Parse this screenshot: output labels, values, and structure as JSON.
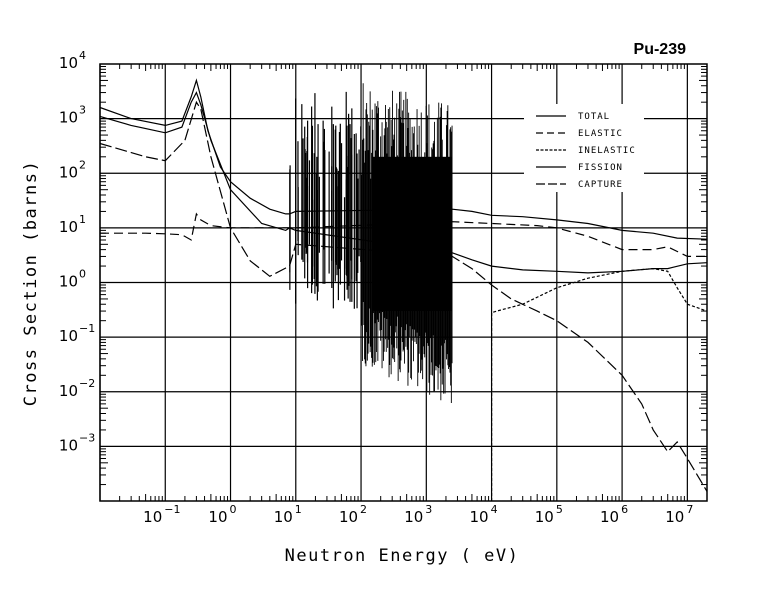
{
  "chart_data": {
    "type": "line",
    "title": "Pu-239",
    "xlabel": "Neutron Energy ( eV)",
    "ylabel": "Cross Section (barns)",
    "xscale": "log",
    "yscale": "log",
    "xlim": [
      0.01,
      20000000
    ],
    "ylim": [
      0.0001,
      10000
    ],
    "grid": true,
    "legend_position": "top-right",
    "x_ticks": [
      {
        "base": "10",
        "exp": "-1",
        "value": 0.1
      },
      {
        "base": "10",
        "exp": "0",
        "value": 1
      },
      {
        "base": "10",
        "exp": "1",
        "value": 10
      },
      {
        "base": "10",
        "exp": "2",
        "value": 100
      },
      {
        "base": "10",
        "exp": "3",
        "value": 1000
      },
      {
        "base": "10",
        "exp": "4",
        "value": 10000
      },
      {
        "base": "10",
        "exp": "5",
        "value": 100000
      },
      {
        "base": "10",
        "exp": "6",
        "value": 1000000
      },
      {
        "base": "10",
        "exp": "7",
        "value": 10000000
      }
    ],
    "y_ticks": [
      {
        "base": "10",
        "exp": "4",
        "value": 10000
      },
      {
        "base": "10",
        "exp": "3",
        "value": 1000
      },
      {
        "base": "10",
        "exp": "2",
        "value": 100
      },
      {
        "base": "10",
        "exp": "1",
        "value": 10
      },
      {
        "base": "10",
        "exp": "0",
        "value": 1
      },
      {
        "base": "10",
        "exp": "-1",
        "value": 0.1
      },
      {
        "base": "10",
        "exp": "-2",
        "value": 0.01
      },
      {
        "base": "10",
        "exp": "-3",
        "value": 0.001
      }
    ],
    "series": [
      {
        "name": "TOTAL",
        "style": "solid",
        "x": [
          0.01,
          0.03,
          0.1,
          0.18,
          0.25,
          0.3,
          0.35,
          0.45,
          0.7,
          1.0,
          2.0,
          4.0,
          7.0,
          8.0,
          10.0,
          2500,
          5000,
          10000,
          30000,
          100000,
          300000,
          1000000,
          3000000,
          7000000,
          20000000
        ],
        "y": [
          1600,
          1000,
          750,
          900,
          2500,
          5000,
          2500,
          600,
          130,
          70,
          35,
          22,
          18,
          18,
          20,
          22,
          20,
          17,
          16,
          14,
          12,
          9,
          8,
          6.5,
          6.2
        ]
      },
      {
        "name": "ELASTIC",
        "style": "dashed",
        "x": [
          0.01,
          0.05,
          0.1,
          0.18,
          0.25,
          0.3,
          0.35,
          0.5,
          1.0,
          3.0,
          10.0,
          2500,
          10000,
          50000,
          100000,
          300000,
          1000000,
          3000000,
          5000000,
          10000000,
          20000000
        ],
        "y": [
          8,
          8,
          7.8,
          7.5,
          6,
          18,
          14,
          11,
          10,
          10,
          10,
          13,
          12,
          11,
          10,
          7,
          4,
          4,
          4.5,
          3,
          3
        ]
      },
      {
        "name": "INELASTIC",
        "style": "dotted",
        "x": [
          10000,
          10000,
          12000,
          30000,
          100000,
          300000,
          1000000,
          3000000,
          5000000,
          7000000,
          10000000,
          20000000
        ],
        "y": [
          0.0001,
          0.28,
          0.3,
          0.4,
          0.8,
          1.2,
          1.6,
          1.8,
          1.6,
          0.8,
          0.4,
          0.3
        ]
      },
      {
        "name": "FISSION",
        "style": "solid",
        "x": [
          0.01,
          0.03,
          0.1,
          0.18,
          0.25,
          0.3,
          0.35,
          0.5,
          1.0,
          3.0,
          7.0,
          8.0,
          10.0,
          2500,
          5000,
          10000,
          30000,
          100000,
          300000,
          1000000,
          3000000,
          5000000,
          6000000,
          10000000,
          20000000
        ],
        "y": [
          1100,
          750,
          550,
          700,
          2000,
          3000,
          1800,
          400,
          50,
          12,
          9,
          10,
          9,
          3.5,
          2.6,
          2.0,
          1.7,
          1.6,
          1.5,
          1.6,
          1.8,
          1.8,
          1.9,
          2.2,
          2.3
        ]
      },
      {
        "name": "CAPTURE",
        "style": "dash-dot",
        "x": [
          0.01,
          0.05,
          0.1,
          0.2,
          0.3,
          0.35,
          0.5,
          1.0,
          2.0,
          4.0,
          8.0,
          10.0,
          2500,
          5000,
          10000,
          20000,
          50000,
          100000,
          300000,
          1000000,
          2000000,
          3000000,
          5000000,
          7000000,
          10000000,
          20000000
        ],
        "y": [
          350,
          200,
          170,
          400,
          2000,
          1500,
          200,
          10,
          2.5,
          1.3,
          2,
          5,
          3,
          1.8,
          0.9,
          0.5,
          0.3,
          0.2,
          0.08,
          0.02,
          0.006,
          0.002,
          0.0008,
          0.0012,
          0.0006,
          0.00015
        ]
      }
    ]
  }
}
